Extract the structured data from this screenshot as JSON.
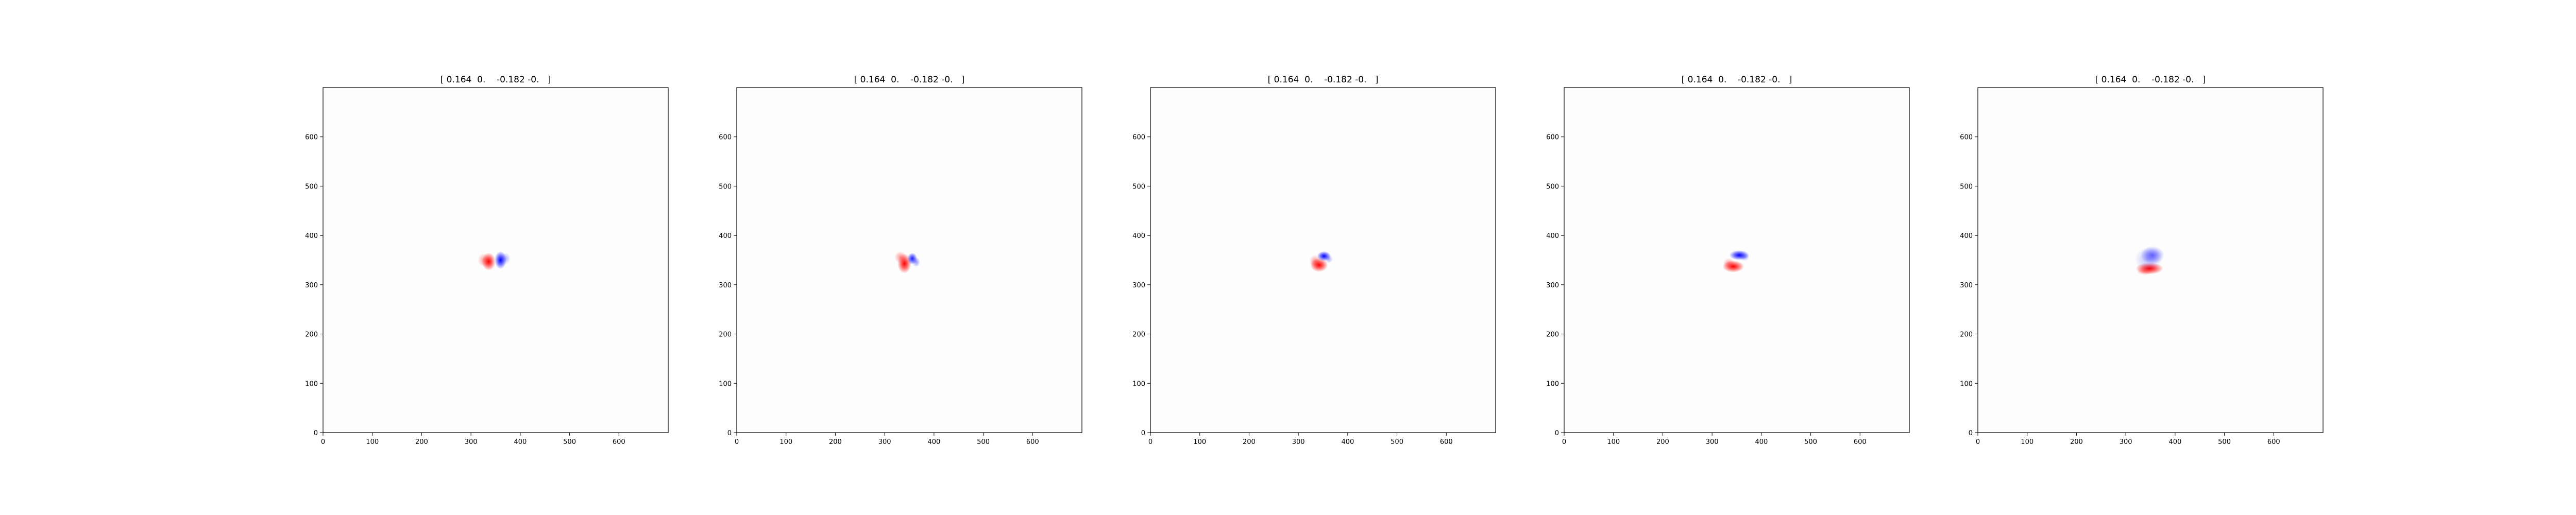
{
  "chart_data": [
    {
      "type": "heatmap",
      "title": "[ 0.164  0.    -0.182 -0.   ]",
      "xlim": [
        0,
        700
      ],
      "ylim": [
        700,
        0
      ],
      "xticks": [
        0,
        100,
        200,
        300,
        400,
        500,
        600
      ],
      "yticks": [
        0,
        100,
        200,
        300,
        400,
        500,
        600
      ],
      "grid": false,
      "blobs": [
        {
          "x": 336,
          "y": 347,
          "value": 1.0,
          "sx": 7,
          "sy": 9,
          "color": "#ff0000"
        },
        {
          "x": 326,
          "y": 350,
          "value": 0.35,
          "sx": 6,
          "sy": 7,
          "color": "#ff0000"
        },
        {
          "x": 360,
          "y": 350,
          "value": -1.0,
          "sx": 6,
          "sy": 9,
          "color": "#0000ff"
        },
        {
          "x": 370,
          "y": 353,
          "value": -0.3,
          "sx": 5,
          "sy": 6,
          "color": "#0000ff"
        }
      ]
    },
    {
      "type": "heatmap",
      "title": "[ 0.164  0.    -0.182 -0.   ]",
      "xlim": [
        0,
        700
      ],
      "ylim": [
        700,
        0
      ],
      "xticks": [
        0,
        100,
        200,
        300,
        400,
        500,
        600
      ],
      "yticks": [
        0,
        100,
        200,
        300,
        400,
        500,
        600
      ],
      "grid": false,
      "blobs": [
        {
          "x": 340,
          "y": 343,
          "value": 1.0,
          "sx": 7,
          "sy": 10,
          "color": "#ff0000"
        },
        {
          "x": 332,
          "y": 356,
          "value": 0.4,
          "sx": 6,
          "sy": 6,
          "color": "#ff0000"
        },
        {
          "x": 356,
          "y": 353,
          "value": -0.9,
          "sx": 5,
          "sy": 6,
          "color": "#0000ff"
        },
        {
          "x": 364,
          "y": 346,
          "value": -0.4,
          "sx": 4,
          "sy": 5,
          "color": "#0000ff"
        }
      ]
    },
    {
      "type": "heatmap",
      "title": "[ 0.164  0.    -0.182 -0.   ]",
      "xlim": [
        0,
        700
      ],
      "ylim": [
        700,
        0
      ],
      "xticks": [
        0,
        100,
        200,
        300,
        400,
        500,
        600
      ],
      "yticks": [
        0,
        100,
        200,
        300,
        400,
        500,
        600
      ],
      "grid": false,
      "blobs": [
        {
          "x": 342,
          "y": 340,
          "value": 1.0,
          "sx": 9,
          "sy": 7,
          "color": "#ff0000"
        },
        {
          "x": 334,
          "y": 348,
          "value": 0.4,
          "sx": 6,
          "sy": 6,
          "color": "#ff0000"
        },
        {
          "x": 352,
          "y": 358,
          "value": -1.0,
          "sx": 7,
          "sy": 5,
          "color": "#0000ff"
        },
        {
          "x": 362,
          "y": 352,
          "value": -0.3,
          "sx": 4,
          "sy": 4,
          "color": "#0000ff"
        }
      ]
    },
    {
      "type": "heatmap",
      "title": "[ 0.164  0.    -0.182 -0.   ]",
      "xlim": [
        0,
        700
      ],
      "ylim": [
        700,
        0
      ],
      "xticks": [
        0,
        100,
        200,
        300,
        400,
        500,
        600
      ],
      "yticks": [
        0,
        100,
        200,
        300,
        400,
        500,
        600
      ],
      "grid": false,
      "blobs": [
        {
          "x": 343,
          "y": 337,
          "value": 1.0,
          "sx": 11,
          "sy": 6,
          "color": "#ff0000"
        },
        {
          "x": 334,
          "y": 344,
          "value": 0.35,
          "sx": 6,
          "sy": 5,
          "color": "#ff0000"
        },
        {
          "x": 355,
          "y": 360,
          "value": -1.0,
          "sx": 10,
          "sy": 5,
          "color": "#0000ff"
        },
        {
          "x": 366,
          "y": 356,
          "value": -0.3,
          "sx": 5,
          "sy": 4,
          "color": "#0000ff"
        }
      ]
    },
    {
      "type": "heatmap",
      "title": "[ 0.164  0.    -0.182 -0.   ]",
      "xlim": [
        0,
        700
      ],
      "ylim": [
        700,
        0
      ],
      "xticks": [
        0,
        100,
        200,
        300,
        400,
        500,
        600
      ],
      "yticks": [
        0,
        100,
        200,
        300,
        400,
        500,
        600
      ],
      "grid": false,
      "blobs": [
        {
          "x": 348,
          "y": 333,
          "value": 1.0,
          "sx": 14,
          "sy": 6,
          "color": "#ff0000"
        },
        {
          "x": 338,
          "y": 327,
          "value": 0.3,
          "sx": 8,
          "sy": 4,
          "color": "#ff0000"
        },
        {
          "x": 354,
          "y": 360,
          "value": -0.55,
          "sx": 12,
          "sy": 9,
          "color": "#0000ff"
        },
        {
          "x": 346,
          "y": 352,
          "value": -0.25,
          "sx": 14,
          "sy": 12,
          "color": "#0000ff"
        }
      ]
    }
  ]
}
